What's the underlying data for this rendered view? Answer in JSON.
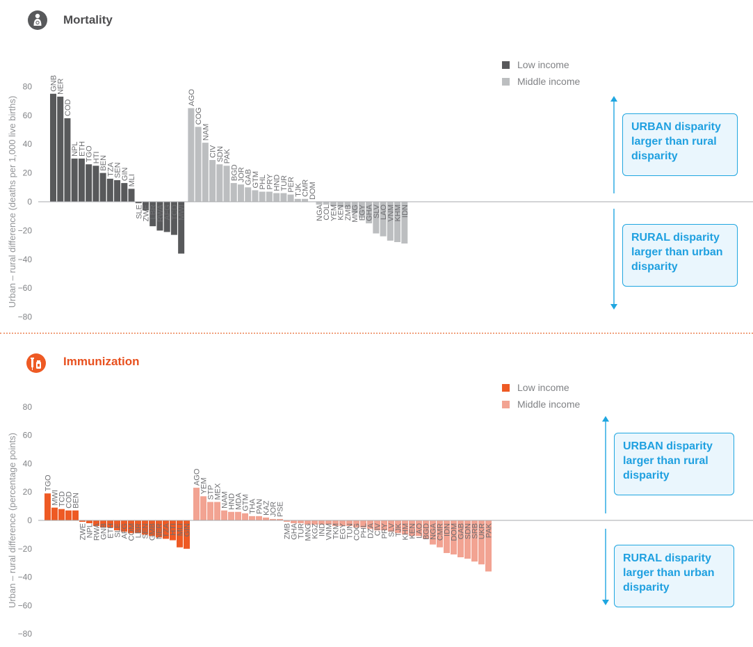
{
  "sections": {
    "mortality": {
      "title": "Mortality",
      "ylabel": "Urban – rural difference (deaths per 1,000 live births)",
      "icon": "mother-child-icon",
      "color": "#58595b",
      "low_color": "#58595b",
      "mid_color": "#bcbec0",
      "urban_callout": "URBAN disparity larger than rural disparity",
      "rural_callout": "RURAL disparity larger than urban disparity"
    },
    "immunization": {
      "title": "Immunization",
      "ylabel": "Urban – rural difference (percentage points)",
      "icon": "syringe-vial-icon",
      "color": "#ee5a24",
      "low_color": "#ee5a24",
      "mid_color": "#f2a392",
      "urban_callout": "URBAN disparity larger than rural disparity",
      "rural_callout": "RURAL disparity larger than urban disparity"
    }
  },
  "chart_data": [
    {
      "type": "bar",
      "title": "Mortality",
      "xlabel": "",
      "ylabel": "Urban – rural difference (deaths per 1,000 live births)",
      "ylim": [
        -80,
        80
      ],
      "yticks": [
        80,
        60,
        40,
        20,
        0,
        -20,
        -40,
        -60,
        -80
      ],
      "legend": "top-right",
      "series": [
        {
          "name": "Low income",
          "color": "#58595b",
          "categories": [
            "GNB",
            "NER",
            "COD",
            "NPL",
            "ETH",
            "TGO",
            "HTI",
            "BEN",
            "TZA",
            "SEN",
            "GIN",
            "MLI",
            "SLE",
            "ZWE",
            "LBR",
            "RWA",
            "AFG",
            "TCD",
            "MWI"
          ],
          "values": [
            75,
            73,
            58,
            30,
            30,
            26,
            25,
            20,
            16,
            15,
            13,
            9,
            -1,
            -6,
            -17,
            -20,
            -21,
            -23,
            -36
          ]
        },
        {
          "name": "Middle income",
          "color": "#bcbec0",
          "categories": [
            "AGO",
            "COG",
            "NAM",
            "CIV",
            "SDN",
            "PAK",
            "BGD",
            "JOR",
            "GAB",
            "GTM",
            "PHL",
            "PRY",
            "HND",
            "TUR",
            "PER",
            "TJK",
            "CMR",
            "DOM",
            "NGA",
            "COL",
            "YEM",
            "KEN",
            "ZMB",
            "MNG",
            "EGY",
            "GHA",
            "SLV",
            "LAO",
            "VNM",
            "KHM",
            "IDN"
          ],
          "values": [
            65,
            52,
            41,
            29,
            26,
            25,
            13,
            12,
            10,
            8,
            7,
            7,
            6,
            6,
            5,
            2,
            2,
            0,
            -2,
            -2,
            -3,
            -4,
            -4,
            -8,
            -11,
            -15,
            -22,
            -24,
            -27,
            -28,
            -29
          ]
        }
      ]
    },
    {
      "type": "bar",
      "title": "Immunization",
      "xlabel": "",
      "ylabel": "Urban – rural difference (percentage points)",
      "ylim": [
        -80,
        80
      ],
      "yticks": [
        80,
        60,
        40,
        20,
        0,
        -20,
        -40,
        -60,
        -80
      ],
      "legend": "top-right",
      "series": [
        {
          "name": "Low income",
          "color": "#ee5a24",
          "categories": [
            "TGO",
            "MWI",
            "TCD",
            "COD",
            "BEN",
            "ZWE",
            "NPL",
            "RWA",
            "GNB",
            "ETH",
            "SLE",
            "AFG",
            "COM",
            "LBR",
            "SEN",
            "GMB",
            "NER",
            "TZA",
            "HTI",
            "MLI",
            "GIN"
          ],
          "values": [
            19,
            9,
            8,
            7,
            7,
            -1,
            -2,
            -4,
            -5,
            -5,
            -7,
            -8,
            -9,
            -9,
            -10,
            -11,
            -12,
            -13,
            -14,
            -19,
            -20
          ]
        },
        {
          "name": "Middle income",
          "color": "#f2a392",
          "categories": [
            "AGO",
            "YEM",
            "STP",
            "MEX",
            "NAM",
            "HND",
            "MDA",
            "GTM",
            "THA",
            "PAN",
            "KAZ",
            "JOR",
            "PSE",
            "ZMB",
            "GHA",
            "TUR",
            "MNG",
            "KGZ",
            "IND",
            "VNM",
            "TKM",
            "EGY",
            "TUN",
            "COG",
            "PHL",
            "DZA",
            "CIV",
            "PRY",
            "SLV",
            "TJK",
            "KHM",
            "KEN",
            "LAO",
            "BGD",
            "NGA",
            "CMR",
            "IDN",
            "DOM",
            "GAB",
            "SDN",
            "SRB",
            "UKR",
            "PAK"
          ],
          "values": [
            23,
            17,
            13,
            13,
            7,
            6,
            6,
            5,
            3,
            3,
            2,
            1,
            1,
            -1,
            -2,
            -2,
            -3,
            -3,
            -3,
            -3,
            -4,
            -4,
            -4,
            -5,
            -5,
            -6,
            -7,
            -7,
            -8,
            -9,
            -10,
            -11,
            -11,
            -13,
            -17,
            -19,
            -23,
            -24,
            -26,
            -27,
            -29,
            -31,
            -36
          ]
        }
      ]
    }
  ]
}
